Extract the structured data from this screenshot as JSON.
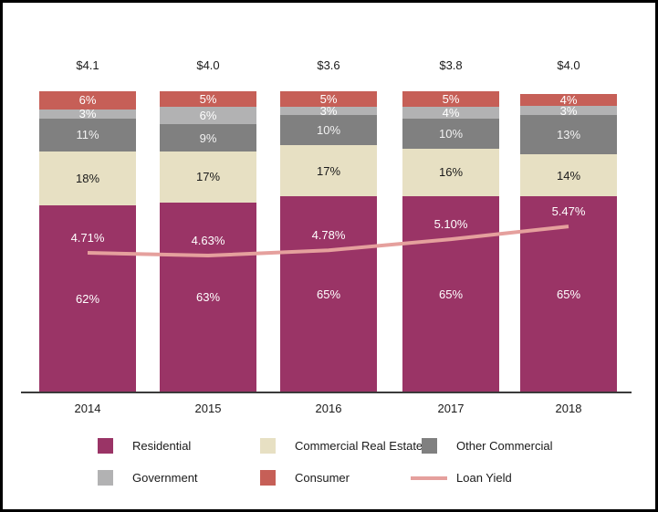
{
  "frame": {
    "border_color": "#000000",
    "background_color": "#ffffff",
    "axis_color": "#3b3b3b"
  },
  "chart_data": {
    "type": "bar",
    "subtype": "stacked-percent-with-line-overlay",
    "title": "",
    "xlabel": "",
    "ylabel": "",
    "grid": false,
    "categories": [
      "2014",
      "2015",
      "2016",
      "2017",
      "2018"
    ],
    "bar_total_labels": [
      "$4.1",
      "$4.0",
      "$3.6",
      "$3.8",
      "$4.0"
    ],
    "series": [
      {
        "name": "Residential",
        "color": "#9a3466",
        "label_color": "#ffffff",
        "values": [
          62,
          63,
          65,
          65,
          65
        ]
      },
      {
        "name": "Commercial Real Estate",
        "color": "#e7e0c3",
        "label_color": "#1a1a1a",
        "values": [
          18,
          17,
          17,
          16,
          14
        ]
      },
      {
        "name": "Other Commercial",
        "color": "#808080",
        "label_color": "#f2f2f2",
        "values": [
          11,
          9,
          10,
          10,
          13
        ]
      },
      {
        "name": "Government",
        "color": "#b2b2b3",
        "label_color": "#ffffff",
        "values": [
          3,
          6,
          3,
          4,
          3
        ]
      },
      {
        "name": "Consumer",
        "color": "#c65f57",
        "label_color": "#ffffff",
        "values": [
          6,
          5,
          5,
          5,
          4
        ]
      }
    ],
    "value_suffix": "%",
    "line_series": {
      "name": "Loan Yield",
      "color": "#e5a09d",
      "values": [
        4.71,
        4.63,
        4.78,
        5.1,
        5.47
      ],
      "labels": [
        "4.71%",
        "4.63%",
        "4.78%",
        "5.10%",
        "5.47%"
      ]
    },
    "legend": {
      "position": "bottom",
      "rows": [
        [
          {
            "label": "Residential",
            "swatch": "square",
            "color": "#9a3466"
          },
          {
            "label": "Commercial Real Estate",
            "swatch": "square",
            "color": "#e7e0c3"
          },
          {
            "label": "Other Commercial",
            "swatch": "square",
            "color": "#808080"
          }
        ],
        [
          {
            "label": "Government",
            "swatch": "square",
            "color": "#b2b2b3"
          },
          {
            "label": "Consumer",
            "swatch": "square",
            "color": "#c65f57"
          },
          {
            "label": "Loan Yield",
            "swatch": "line",
            "color": "#e5a09d"
          }
        ]
      ]
    }
  }
}
